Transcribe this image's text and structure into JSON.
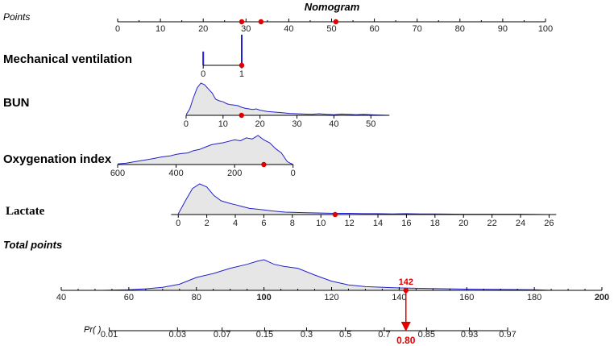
{
  "chart_data": {
    "type": "nomogram",
    "title": "Nomogram",
    "colors": {
      "density_line": "#2222cc",
      "density_fill": "#e6e6e6",
      "highlight": "#e00000"
    },
    "points_axis": {
      "label": "Points",
      "range": [
        0,
        100
      ],
      "ticks": [
        0,
        10,
        20,
        30,
        40,
        50,
        60,
        70,
        80,
        90,
        100
      ],
      "marked_values": [
        29,
        33.5,
        51
      ]
    },
    "variables": [
      {
        "key": "mv",
        "label": "Mechanical ventilation",
        "points_at_min": 20,
        "points_at_max": 29,
        "value_min": 0,
        "value_max": 1,
        "ticks": [
          0,
          1
        ],
        "tick_labels": [
          "0",
          "1"
        ],
        "selected_value": 1,
        "density": {
          "type": "bars",
          "x": [
            0,
            1
          ],
          "y": [
            0.45,
            1.0
          ]
        }
      },
      {
        "key": "bun",
        "label": "BUN",
        "points_at_min": 16,
        "points_at_max": 63.5,
        "value_min": 0,
        "value_max": 55,
        "ticks": [
          0,
          10,
          20,
          30,
          40,
          50
        ],
        "tick_labels": [
          "0",
          "10",
          "20",
          "30",
          "40",
          "50"
        ],
        "selected_value": 15,
        "density": {
          "type": "curve",
          "x": [
            0,
            1,
            2,
            3,
            4,
            5,
            6,
            7,
            8,
            9,
            10,
            11,
            12,
            13,
            14,
            15,
            16,
            17,
            18,
            19,
            20,
            22,
            24,
            26,
            28,
            30,
            32,
            34,
            36,
            38,
            40,
            42,
            44,
            46,
            48,
            50,
            52,
            55
          ],
          "y": [
            0.02,
            0.2,
            0.55,
            0.85,
            1.0,
            0.95,
            0.82,
            0.7,
            0.5,
            0.45,
            0.42,
            0.36,
            0.33,
            0.32,
            0.3,
            0.25,
            0.22,
            0.2,
            0.18,
            0.2,
            0.16,
            0.12,
            0.1,
            0.08,
            0.06,
            0.05,
            0.04,
            0.03,
            0.05,
            0.03,
            0.02,
            0.04,
            0.03,
            0.02,
            0.03,
            0.02,
            0.01,
            0
          ]
        }
      },
      {
        "key": "oi",
        "label": "Oxygenation index",
        "points_at_min": 0,
        "points_at_max": 41,
        "value_min": 600,
        "value_max": 0,
        "ticks": [
          600,
          400,
          200,
          0
        ],
        "tick_labels": [
          "600",
          "400",
          "200",
          "0"
        ],
        "selected_value": 100,
        "density": {
          "type": "curve",
          "x": [
            600,
            570,
            540,
            510,
            480,
            450,
            420,
            400,
            380,
            360,
            340,
            320,
            300,
            280,
            260,
            240,
            220,
            200,
            180,
            160,
            140,
            120,
            100,
            80,
            60,
            40,
            20,
            0
          ],
          "y": [
            0.02,
            0.05,
            0.1,
            0.15,
            0.2,
            0.26,
            0.3,
            0.35,
            0.38,
            0.4,
            0.48,
            0.52,
            0.6,
            0.68,
            0.72,
            0.75,
            0.8,
            0.85,
            0.82,
            0.92,
            0.88,
            1.0,
            0.85,
            0.75,
            0.55,
            0.4,
            0.1,
            0.0
          ]
        }
      },
      {
        "key": "lactate",
        "label": "Lactate",
        "points_at_min": 12.5,
        "points_at_max": 102.5,
        "value_min": -0.5,
        "value_max": 26.5,
        "ticks": [
          0,
          2,
          4,
          6,
          8,
          10,
          12,
          14,
          16,
          18,
          20,
          22,
          24,
          26
        ],
        "tick_labels": [
          "0",
          "2",
          "4",
          "6",
          "8",
          "10",
          "12",
          "14",
          "16",
          "18",
          "20",
          "22",
          "24",
          "26"
        ],
        "selected_value": 11,
        "density": {
          "type": "curve",
          "x": [
            0,
            0.5,
            1,
            1.5,
            2,
            2.5,
            3,
            3.5,
            4,
            4.5,
            5,
            5.5,
            6,
            6.5,
            7,
            7.5,
            8,
            9,
            10,
            11,
            12,
            13,
            14,
            15,
            16,
            17,
            18,
            20,
            22,
            24,
            26
          ],
          "y": [
            0.02,
            0.45,
            0.85,
            1.0,
            0.9,
            0.62,
            0.45,
            0.38,
            0.32,
            0.26,
            0.2,
            0.18,
            0.15,
            0.12,
            0.1,
            0.08,
            0.07,
            0.06,
            0.05,
            0.04,
            0.04,
            0.03,
            0.03,
            0.02,
            0.03,
            0.02,
            0.02,
            0.01,
            0.01,
            0.01,
            0
          ]
        }
      }
    ],
    "total_points": {
      "label": "Total points",
      "range": [
        40,
        200
      ],
      "ticks": [
        40,
        60,
        80,
        100,
        120,
        140,
        160,
        180,
        200
      ],
      "tick_labels": [
        "40",
        "60",
        "80",
        "100",
        "120",
        "140",
        "160",
        "180",
        "200"
      ],
      "bold_ticks": [
        100,
        200
      ],
      "selected_value": 142,
      "selected_label": "142",
      "density": {
        "type": "curve",
        "x": [
          52,
          60,
          65,
          70,
          75,
          80,
          85,
          90,
          95,
          98,
          100,
          103,
          106,
          110,
          115,
          120,
          125,
          130,
          140,
          150,
          160,
          170,
          180,
          185
        ],
        "y": [
          0.0,
          0.02,
          0.05,
          0.1,
          0.2,
          0.42,
          0.55,
          0.72,
          0.85,
          0.95,
          1.0,
          0.85,
          0.78,
          0.72,
          0.5,
          0.3,
          0.18,
          0.12,
          0.08,
          0.06,
          0.04,
          0.03,
          0.02,
          0
        ]
      }
    },
    "probability_axis": {
      "label": "Pr( )",
      "ticks": [
        0.01,
        0.03,
        0.07,
        0.15,
        0.3,
        0.5,
        0.7,
        0.85,
        0.93,
        0.97
      ],
      "tick_labels": [
        "0.01",
        "0.03",
        "0.07",
        "0.15",
        "0.3",
        "0.5",
        "0.7",
        "0.85",
        "0.93",
        "0.97"
      ],
      "tick_total_points": [
        54.2,
        74.4,
        87.6,
        100.2,
        112.6,
        124.1,
        135.6,
        148.1,
        160.8,
        172.1
      ],
      "selected_value": 0.8,
      "selected_label": "0.80"
    }
  }
}
